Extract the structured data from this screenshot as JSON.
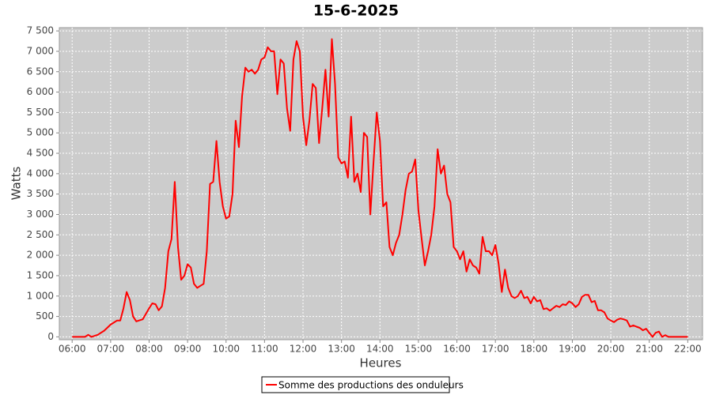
{
  "chart_data": {
    "type": "line",
    "title": "15-6-2025",
    "x_label": "Heures",
    "y_label": "Watts",
    "x": [
      "06:00",
      "06:10",
      "06:20",
      "06:25",
      "06:30",
      "06:40",
      "06:50",
      "07:00",
      "07:10",
      "07:15",
      "07:20",
      "07:25",
      "07:30",
      "07:35",
      "07:40",
      "07:50",
      "08:00",
      "08:05",
      "08:10",
      "08:15",
      "08:20",
      "08:25",
      "08:30",
      "08:35",
      "08:40",
      "08:45",
      "08:50",
      "08:55",
      "09:00",
      "09:05",
      "09:10",
      "09:15",
      "09:20",
      "09:25",
      "09:30",
      "09:35",
      "09:40",
      "09:45",
      "09:50",
      "09:55",
      "10:00",
      "10:05",
      "10:10",
      "10:15",
      "10:20",
      "10:25",
      "10:30",
      "10:35",
      "10:40",
      "10:45",
      "10:50",
      "10:55",
      "11:00",
      "11:05",
      "11:10",
      "11:15",
      "11:20",
      "11:25",
      "11:30",
      "11:35",
      "11:40",
      "11:45",
      "11:50",
      "11:55",
      "12:00",
      "12:05",
      "12:10",
      "12:15",
      "12:20",
      "12:25",
      "12:30",
      "12:35",
      "12:40",
      "12:45",
      "12:50",
      "12:55",
      "13:00",
      "13:05",
      "13:10",
      "13:15",
      "13:20",
      "13:25",
      "13:30",
      "13:35",
      "13:40",
      "13:45",
      "13:50",
      "13:55",
      "14:00",
      "14:05",
      "14:10",
      "14:15",
      "14:20",
      "14:25",
      "14:30",
      "14:35",
      "14:40",
      "14:45",
      "14:50",
      "14:55",
      "15:00",
      "15:05",
      "15:10",
      "15:15",
      "15:20",
      "15:25",
      "15:30",
      "15:35",
      "15:40",
      "15:45",
      "15:50",
      "15:55",
      "16:00",
      "16:05",
      "16:10",
      "16:15",
      "16:20",
      "16:25",
      "16:30",
      "16:35",
      "16:40",
      "16:45",
      "16:50",
      "16:55",
      "17:00",
      "17:05",
      "17:10",
      "17:15",
      "17:20",
      "17:25",
      "17:30",
      "17:35",
      "17:40",
      "17:45",
      "17:50",
      "17:55",
      "18:00",
      "18:05",
      "18:10",
      "18:15",
      "18:20",
      "18:25",
      "18:30",
      "18:35",
      "18:40",
      "18:45",
      "18:50",
      "18:55",
      "19:00",
      "19:05",
      "19:10",
      "19:15",
      "19:20",
      "19:25",
      "19:30",
      "19:35",
      "19:40",
      "19:45",
      "19:50",
      "19:55",
      "20:00",
      "20:05",
      "20:10",
      "20:15",
      "20:20",
      "20:25",
      "20:30",
      "20:35",
      "20:40",
      "20:45",
      "20:50",
      "20:55",
      "21:00",
      "21:05",
      "21:10",
      "21:15",
      "21:20",
      "21:25",
      "21:30",
      "21:40",
      "21:50",
      "22:00"
    ],
    "series": [
      {
        "name": "Somme des productions des onduleurs",
        "color": "#ff0000",
        "values": [
          0,
          0,
          0,
          50,
          0,
          50,
          150,
          300,
          400,
          400,
          700,
          1100,
          900,
          500,
          380,
          430,
          700,
          820,
          800,
          650,
          750,
          1200,
          2100,
          2400,
          3800,
          2200,
          1400,
          1500,
          1780,
          1700,
          1300,
          1200,
          1250,
          1300,
          2100,
          3750,
          3800,
          4800,
          3800,
          3200,
          2900,
          2950,
          3500,
          5300,
          4650,
          5900,
          6600,
          6500,
          6550,
          6450,
          6550,
          6800,
          6850,
          7100,
          7000,
          7000,
          5950,
          6800,
          6700,
          5600,
          5050,
          6800,
          7250,
          7000,
          5400,
          4700,
          5300,
          6200,
          6100,
          4750,
          5600,
          6550,
          5400,
          7300,
          6200,
          4400,
          4250,
          4300,
          3900,
          5400,
          3800,
          4000,
          3550,
          5000,
          4900,
          3000,
          4300,
          5500,
          4800,
          3200,
          3300,
          2200,
          2000,
          2300,
          2500,
          3000,
          3600,
          4000,
          4050,
          4350,
          3100,
          2400,
          1750,
          2100,
          2500,
          3200,
          4600,
          4000,
          4200,
          3500,
          3300,
          2200,
          2100,
          1900,
          2100,
          1600,
          1900,
          1750,
          1700,
          1550,
          2450,
          2100,
          2100,
          2000,
          2250,
          1800,
          1100,
          1650,
          1200,
          1000,
          950,
          1000,
          1130,
          950,
          980,
          820,
          980,
          870,
          900,
          680,
          700,
          640,
          700,
          760,
          730,
          800,
          780,
          870,
          820,
          730,
          800,
          980,
          1030,
          1030,
          850,
          880,
          650,
          650,
          600,
          450,
          400,
          360,
          420,
          450,
          430,
          400,
          250,
          280,
          250,
          220,
          160,
          200,
          100,
          0,
          100,
          130,
          0,
          40,
          0,
          0,
          0,
          0
        ]
      }
    ],
    "xlim": [
      "05:40",
      "22:23"
    ],
    "xticks": [
      "06:00",
      "07:00",
      "08:00",
      "09:00",
      "10:00",
      "11:00",
      "12:00",
      "13:00",
      "14:00",
      "15:00",
      "16:00",
      "17:00",
      "18:00",
      "19:00",
      "20:00",
      "21:00",
      "22:00"
    ],
    "ylim": [
      -70,
      7580
    ],
    "yticks": [
      0,
      500,
      {
        "value": 1000,
        "label": "1 000"
      },
      {
        "value": 1500,
        "label": "1 500"
      },
      {
        "value": 2000,
        "label": "2 000"
      },
      {
        "value": 2500,
        "label": "2 500"
      },
      {
        "value": 3000,
        "label": "3 000"
      },
      {
        "value": 3500,
        "label": "3 500"
      },
      {
        "value": 4000,
        "label": "4 000"
      },
      {
        "value": 4500,
        "label": "4 500"
      },
      {
        "value": 5000,
        "label": "5 000"
      },
      {
        "value": 5500,
        "label": "5 500"
      },
      {
        "value": 6000,
        "label": "6 000"
      },
      {
        "value": 6500,
        "label": "6 500"
      },
      {
        "value": 7000,
        "label": "7 000"
      },
      {
        "value": 7500,
        "label": "7 500"
      }
    ],
    "grid": true
  }
}
